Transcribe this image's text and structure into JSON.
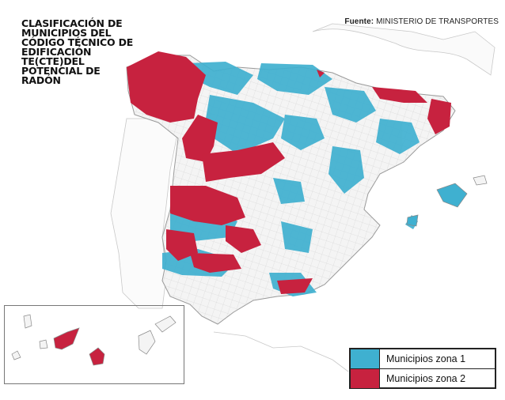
{
  "title": "CLASIFICACIÓN DE MUNICIPIOS DEL CÓDIGO TÉCNICO DE EDIFICACIÓN TE(CTE)DEL POTENCIAL DE RADÓN",
  "source": {
    "label": "Fuente:",
    "text": "MINISTERIO DE TRANSPORTES"
  },
  "legend": [
    {
      "label": "Municipios zona 1",
      "color": "#3fb0d0"
    },
    {
      "label": "Municipios zona 2",
      "color": "#c7223f"
    }
  ],
  "colors": {
    "zone1": "#3fb0d0",
    "zone2": "#c7223f",
    "land": "#f4f4f4",
    "border": "#9a9a9a",
    "municipal_lines": "#c6c6c6"
  }
}
